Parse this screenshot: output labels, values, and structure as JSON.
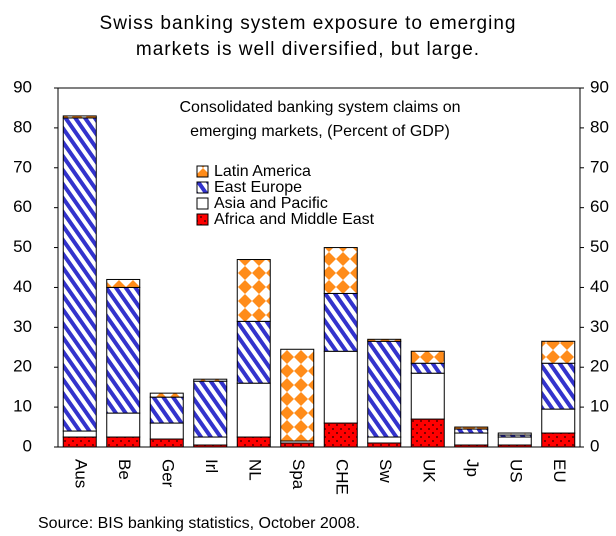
{
  "chart_data": {
    "type": "stacked_bar",
    "title": [
      "Swiss banking system exposure to emerging",
      "markets is well diversified, but large."
    ],
    "annotation": [
      "Consolidated banking system claims on",
      "emerging markets, (Percent of GDP)"
    ],
    "source": "Source: BIS banking statistics, October 2008.",
    "categories": [
      "Aus",
      "Be",
      "Ger",
      "Irl",
      "NL",
      "Spa",
      "CHE",
      "Sw",
      "UK",
      "Jp",
      "US",
      "EU"
    ],
    "series": [
      {
        "name": "Africa and Middle East",
        "color": "#ff0000",
        "pattern": "dots",
        "values": [
          2.5,
          2.5,
          2,
          0.5,
          2.5,
          1,
          6,
          1,
          7,
          0.5,
          0.5,
          3.5
        ]
      },
      {
        "name": "Asia and Pacific",
        "color": "#ffffff",
        "pattern": "solid",
        "values": [
          1.5,
          6,
          4,
          2,
          13.5,
          0.5,
          18,
          1.5,
          11.5,
          3,
          2,
          6
        ]
      },
      {
        "name": "East Europe",
        "color": "#3333cc",
        "pattern": "stripes",
        "values": [
          78.5,
          31.5,
          6.5,
          14,
          15.5,
          0,
          14.5,
          24,
          2.5,
          1,
          0.5,
          11.5
        ]
      },
      {
        "name": "Latin America",
        "color": "#ff8c1a",
        "pattern": "diamonds",
        "values": [
          0.5,
          2,
          1,
          0.5,
          15.5,
          23,
          11.5,
          0.5,
          3,
          0.5,
          0.5,
          5.5
        ]
      }
    ],
    "ylim": [
      0,
      90
    ],
    "yticks": [
      0,
      10,
      20,
      30,
      40,
      50,
      60,
      70,
      80,
      90
    ],
    "grid": false,
    "right_axis": true
  }
}
